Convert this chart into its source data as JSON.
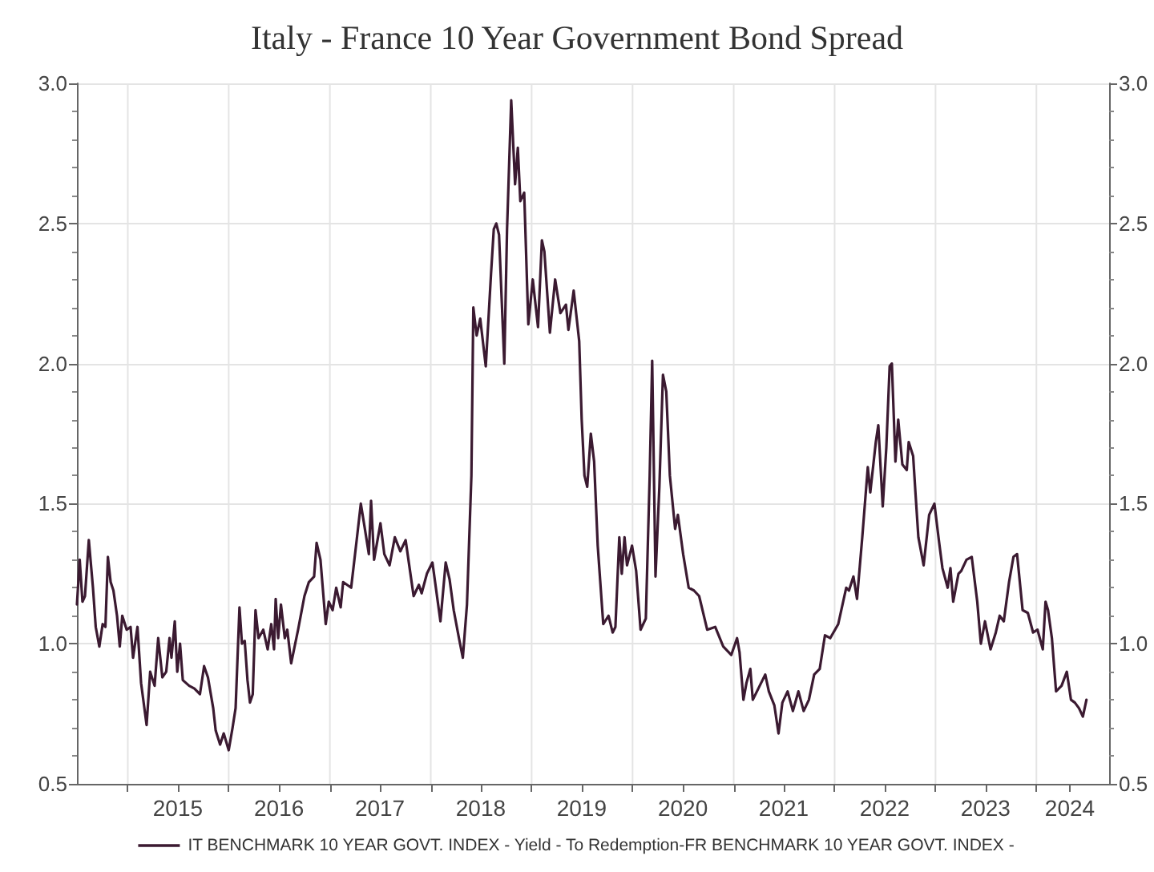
{
  "chart_data": {
    "type": "line",
    "title": "Italy - France 10 Year Government Bond Spread",
    "x": [
      "2014-07-01",
      "2014-07-11",
      "2014-07-21",
      "2014-07-30",
      "2014-08-13",
      "2014-08-28",
      "2014-09-07",
      "2014-09-20",
      "2014-10-02",
      "2014-10-12",
      "2014-10-21",
      "2014-10-31",
      "2014-11-10",
      "2014-11-23",
      "2014-12-03",
      "2014-12-12",
      "2014-12-28",
      "2015-01-11",
      "2015-01-20",
      "2015-02-05",
      "2015-02-18",
      "2015-03-10",
      "2015-03-23",
      "2015-04-08",
      "2015-04-21",
      "2015-05-06",
      "2015-05-20",
      "2015-06-01",
      "2015-06-08",
      "2015-06-20",
      "2015-06-29",
      "2015-07-09",
      "2015-07-19",
      "2015-08-11",
      "2015-08-30",
      "2015-09-19",
      "2015-10-04",
      "2015-10-18",
      "2015-11-06",
      "2015-11-15",
      "2015-12-01",
      "2015-12-14",
      "2016-01-01",
      "2016-01-15",
      "2016-01-26",
      "2016-02-09",
      "2016-02-18",
      "2016-02-28",
      "2016-03-09",
      "2016-03-18",
      "2016-03-28",
      "2016-04-07",
      "2016-04-18",
      "2016-05-05",
      "2016-05-21",
      "2016-06-03",
      "2016-06-13",
      "2016-06-19",
      "2016-06-28",
      "2016-07-08",
      "2016-07-22",
      "2016-07-31",
      "2016-08-14",
      "2016-09-08",
      "2016-10-01",
      "2016-10-17",
      "2016-11-05",
      "2016-11-14",
      "2016-11-28",
      "2016-12-17",
      "2016-12-28",
      "2017-01-11",
      "2017-01-24",
      "2017-02-09",
      "2017-02-18",
      "2017-03-19",
      "2017-04-08",
      "2017-04-23",
      "2017-05-06",
      "2017-05-22",
      "2017-05-30",
      "2017-06-10",
      "2017-07-03",
      "2017-07-17",
      "2017-08-05",
      "2017-08-24",
      "2017-09-13",
      "2017-10-02",
      "2017-10-31",
      "2017-11-19",
      "2017-11-29",
      "2017-12-18",
      "2018-01-07",
      "2018-02-05",
      "2018-02-24",
      "2018-03-10",
      "2018-03-25",
      "2018-04-13",
      "2018-04-27",
      "2018-05-12",
      "2018-05-28",
      "2018-06-04",
      "2018-06-16",
      "2018-06-29",
      "2018-07-19",
      "2018-08-07",
      "2018-08-17",
      "2018-08-26",
      "2018-09-05",
      "2018-09-24",
      "2018-10-04",
      "2018-10-19",
      "2018-11-02",
      "2018-11-12",
      "2018-11-21",
      "2018-12-05",
      "2018-12-20",
      "2019-01-05",
      "2019-01-24",
      "2019-02-07",
      "2019-02-16",
      "2019-03-08",
      "2019-03-27",
      "2019-04-15",
      "2019-05-05",
      "2019-05-14",
      "2019-06-02",
      "2019-06-22",
      "2019-07-01",
      "2019-07-11",
      "2019-07-21",
      "2019-08-03",
      "2019-08-15",
      "2019-08-28",
      "2019-09-17",
      "2019-10-06",
      "2019-10-21",
      "2019-10-31",
      "2019-11-14",
      "2019-11-23",
      "2019-12-03",
      "2019-12-12",
      "2019-12-30",
      "2020-01-14",
      "2020-01-30",
      "2020-02-18",
      "2020-03-03",
      "2020-03-12",
      "2020-03-24",
      "2020-04-07",
      "2020-04-20",
      "2020-05-02",
      "2020-05-15",
      "2020-06-03",
      "2020-06-13",
      "2020-07-02",
      "2020-07-22",
      "2020-08-10",
      "2020-08-29",
      "2020-09-27",
      "2020-10-26",
      "2020-11-24",
      "2020-12-23",
      "2021-01-13",
      "2021-01-22",
      "2021-02-05",
      "2021-02-16",
      "2021-03-02",
      "2021-03-11",
      "2021-03-31",
      "2021-04-25",
      "2021-05-08",
      "2021-05-28",
      "2021-06-12",
      "2021-06-26",
      "2021-07-15",
      "2021-08-03",
      "2021-08-23",
      "2021-09-11",
      "2021-09-30",
      "2021-10-19",
      "2021-11-08",
      "2021-11-27",
      "2021-12-16",
      "2022-01-14",
      "2022-02-12",
      "2022-02-22",
      "2022-03-10",
      "2022-03-23",
      "2022-04-11",
      "2022-05-01",
      "2022-05-10",
      "2022-05-30",
      "2022-06-08",
      "2022-06-24",
      "2022-07-07",
      "2022-07-19",
      "2022-07-27",
      "2022-08-09",
      "2022-08-19",
      "2022-09-03",
      "2022-09-19",
      "2022-09-26",
      "2022-10-12",
      "2022-10-21",
      "2022-10-31",
      "2022-11-19",
      "2022-12-09",
      "2022-12-28",
      "2023-01-13",
      "2023-01-26",
      "2023-02-14",
      "2023-02-24",
      "2023-03-06",
      "2023-03-25",
      "2023-04-04",
      "2023-04-23",
      "2023-05-12",
      "2023-06-01",
      "2023-06-14",
      "2023-06-29",
      "2023-07-19",
      "2023-08-07",
      "2023-08-21",
      "2023-09-05",
      "2023-09-24",
      "2023-10-10",
      "2023-10-23",
      "2023-11-12",
      "2023-12-01",
      "2023-12-20",
      "2024-01-05",
      "2024-01-24",
      "2024-02-03",
      "2024-02-12",
      "2024-02-26",
      "2024-03-12",
      "2024-04-01",
      "2024-04-20",
      "2024-05-05",
      "2024-05-19",
      "2024-06-03",
      "2024-06-17",
      "2024-06-30"
    ],
    "series": [
      {
        "name": "IT BENCHMARK 10 YEAR GOVT. INDEX - Yield - To Redemption-FR BENCHMARK 10 YEAR GOVT. INDEX -",
        "color": "#3b1a31",
        "values": [
          1.14,
          1.3,
          1.15,
          1.17,
          1.37,
          1.2,
          1.06,
          0.99,
          1.07,
          1.06,
          1.31,
          1.22,
          1.19,
          1.1,
          0.99,
          1.1,
          1.05,
          1.06,
          0.95,
          1.06,
          0.86,
          0.71,
          0.9,
          0.85,
          1.02,
          0.88,
          0.9,
          1.02,
          0.95,
          1.08,
          0.9,
          1.0,
          0.87,
          0.85,
          0.84,
          0.82,
          0.92,
          0.88,
          0.77,
          0.69,
          0.64,
          0.68,
          0.62,
          0.7,
          0.77,
          1.13,
          1.0,
          1.01,
          0.87,
          0.79,
          0.82,
          1.12,
          1.02,
          1.05,
          0.98,
          1.07,
          0.98,
          1.16,
          1.02,
          1.14,
          1.02,
          1.05,
          0.93,
          1.05,
          1.17,
          1.22,
          1.24,
          1.36,
          1.3,
          1.07,
          1.15,
          1.12,
          1.2,
          1.13,
          1.22,
          1.2,
          1.37,
          1.5,
          1.42,
          1.32,
          1.51,
          1.3,
          1.43,
          1.32,
          1.28,
          1.38,
          1.33,
          1.37,
          1.17,
          1.21,
          1.18,
          1.25,
          1.29,
          1.08,
          1.29,
          1.23,
          1.12,
          1.02,
          0.95,
          1.14,
          1.6,
          2.2,
          2.1,
          2.16,
          1.99,
          2.32,
          2.48,
          2.5,
          2.46,
          2.0,
          2.48,
          2.94,
          2.64,
          2.77,
          2.58,
          2.61,
          2.14,
          2.3,
          2.13,
          2.44,
          2.4,
          2.11,
          2.3,
          2.18,
          2.21,
          2.12,
          2.26,
          2.08,
          1.8,
          1.6,
          1.56,
          1.75,
          1.65,
          1.35,
          1.07,
          1.1,
          1.04,
          1.06,
          1.38,
          1.25,
          1.38,
          1.28,
          1.35,
          1.26,
          1.05,
          1.09,
          1.6,
          2.01,
          1.24,
          1.56,
          1.96,
          1.9,
          1.6,
          1.41,
          1.46,
          1.32,
          1.2,
          1.19,
          1.17,
          1.05,
          1.06,
          0.99,
          0.96,
          1.02,
          0.97,
          0.8,
          0.86,
          0.91,
          0.8,
          0.84,
          0.89,
          0.83,
          0.78,
          0.68,
          0.79,
          0.83,
          0.76,
          0.83,
          0.76,
          0.8,
          0.89,
          0.91,
          1.03,
          1.02,
          1.07,
          1.2,
          1.19,
          1.24,
          1.16,
          1.38,
          1.63,
          1.54,
          1.72,
          1.78,
          1.49,
          1.7,
          1.99,
          2.0,
          1.65,
          1.8,
          1.64,
          1.62,
          1.72,
          1.67,
          1.53,
          1.38,
          1.28,
          1.46,
          1.5,
          1.37,
          1.27,
          1.2,
          1.27,
          1.15,
          1.25,
          1.26,
          1.3,
          1.31,
          1.15,
          1.0,
          1.08,
          0.98,
          1.04,
          1.1,
          1.08,
          1.22,
          1.31,
          1.32,
          1.12,
          1.11,
          1.04,
          1.05,
          0.98,
          1.15,
          1.12,
          1.02,
          0.83,
          0.85,
          0.9,
          0.8,
          0.79,
          0.77,
          0.74,
          0.8
        ]
      }
    ],
    "xlim": [
      "2014-07-01",
      "2024-09-20"
    ],
    "xticks": [
      {
        "value": "2015-01-01",
        "label": null
      },
      {
        "value": "2015-07-01",
        "label": "2015"
      },
      {
        "value": "2016-01-01",
        "label": null
      },
      {
        "value": "2016-07-01",
        "label": "2016"
      },
      {
        "value": "2017-01-01",
        "label": null
      },
      {
        "value": "2017-07-01",
        "label": "2017"
      },
      {
        "value": "2018-01-01",
        "label": null
      },
      {
        "value": "2018-07-01",
        "label": "2018"
      },
      {
        "value": "2019-01-01",
        "label": null
      },
      {
        "value": "2019-07-01",
        "label": "2019"
      },
      {
        "value": "2020-01-01",
        "label": null
      },
      {
        "value": "2020-07-01",
        "label": "2020"
      },
      {
        "value": "2021-01-01",
        "label": null
      },
      {
        "value": "2021-07-01",
        "label": "2021"
      },
      {
        "value": "2022-01-01",
        "label": null
      },
      {
        "value": "2022-07-01",
        "label": "2022"
      },
      {
        "value": "2023-01-01",
        "label": null
      },
      {
        "value": "2023-07-01",
        "label": "2023"
      },
      {
        "value": "2024-01-01",
        "label": null
      },
      {
        "value": "2024-05-01",
        "label": "2024"
      }
    ],
    "ylim": [
      0.5,
      3.0
    ],
    "yticks": [
      0.5,
      {
        "value": 1,
        "label": "1.0"
      },
      1.5,
      {
        "value": 2,
        "label": "2.0"
      },
      2.5,
      {
        "value": 3,
        "label": "3.0"
      }
    ],
    "y2lim": [
      0.5,
      3.0
    ],
    "y2ticks": [
      0.5,
      {
        "value": 1,
        "label": "1.0"
      },
      1.5,
      {
        "value": 2,
        "label": "2.0"
      },
      2.5,
      {
        "value": 3,
        "label": "3.0"
      }
    ],
    "grid": true,
    "legend": "bottom",
    "marker": "none",
    "line_style": "solid"
  }
}
